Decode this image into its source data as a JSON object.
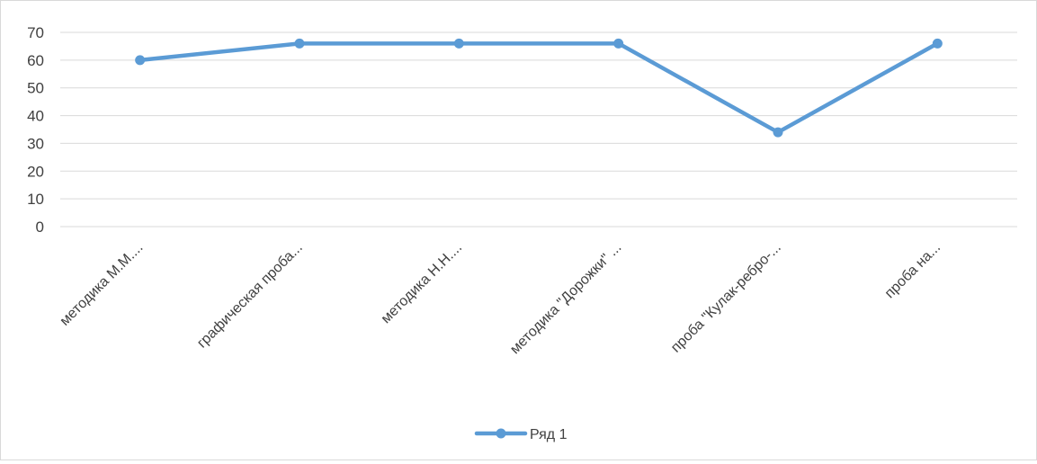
{
  "chart_data": {
    "type": "line",
    "title": "",
    "xlabel": "",
    "ylabel": "",
    "categories": [
      "методика М.М....",
      "графическая проба...",
      "методика Н.Н....",
      "методика \"Дорожки\" ...",
      "проба \"Кулак-ребро-...",
      "проба на..."
    ],
    "series": [
      {
        "name": "Ряд 1",
        "values": [
          60,
          66,
          66,
          66,
          34,
          66
        ],
        "color": "#5b9bd5"
      }
    ],
    "ylim": [
      0,
      70
    ],
    "yticks": [
      0,
      10,
      20,
      30,
      40,
      50,
      60,
      70
    ],
    "grid": true,
    "legend_position": "bottom",
    "colors": {
      "gridline": "#d9d9d9",
      "text": "#404040",
      "border": "#d9d9d9"
    }
  }
}
